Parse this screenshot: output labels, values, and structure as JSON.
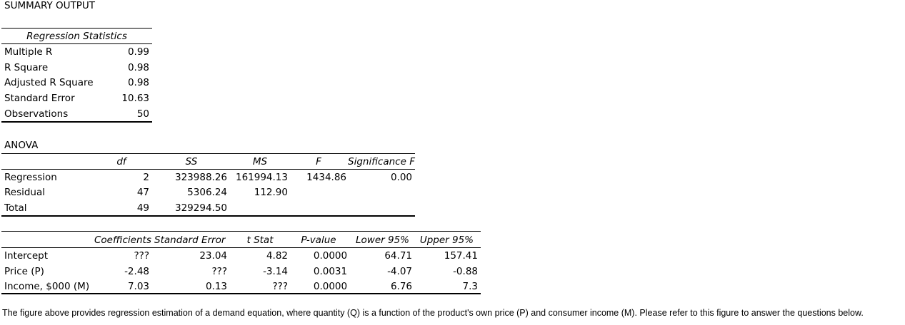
{
  "title": "SUMMARY OUTPUT",
  "regression_statistics": {
    "header": "Regression Statistics",
    "rows": [
      {
        "label": "Multiple R",
        "value": "0.99"
      },
      {
        "label": "R Square",
        "value": "0.98"
      },
      {
        "label": "Adjusted R Square",
        "value": "0.98"
      },
      {
        "label": "Standard Error",
        "value": "10.63"
      },
      {
        "label": "Observations",
        "value": "50"
      }
    ]
  },
  "anova": {
    "title": "ANOVA",
    "headers": [
      "df",
      "SS",
      "MS",
      "F",
      "Significance F"
    ],
    "rows": [
      {
        "label": "Regression",
        "df": "2",
        "ss": "323988.26",
        "ms": "161994.13",
        "f": "1434.86",
        "sig": "0.00"
      },
      {
        "label": "Residual",
        "df": "47",
        "ss": "5306.24",
        "ms": "112.90",
        "f": "",
        "sig": ""
      },
      {
        "label": "Total",
        "df": "49",
        "ss": "329294.50",
        "ms": "",
        "f": "",
        "sig": ""
      }
    ]
  },
  "coefficients": {
    "headers": [
      "Coefficients",
      "Standard Error",
      "t Stat",
      "P-value",
      "Lower 95%",
      "Upper 95%"
    ],
    "rows": [
      {
        "label": "Intercept",
        "coef": "???",
        "se": "23.04",
        "t": "4.82",
        "p": "0.0000",
        "lower": "64.71",
        "upper": "157.41"
      },
      {
        "label": "Price (P)",
        "coef": "-2.48",
        "se": "???",
        "t": "-3.14",
        "p": "0.0031",
        "lower": "-4.07",
        "upper": "-0.88"
      },
      {
        "label": "Income, $000 (M)",
        "coef": "7.03",
        "se": "0.13",
        "t": "???",
        "p": "0.0000",
        "lower": "6.76",
        "upper": "7.3"
      }
    ]
  },
  "caption": "The figure above provides regression estimation of a demand equation, where quantity (Q) is a function of the product's own price (P) and consumer income (M).  Please refer to this figure to answer the questions below."
}
